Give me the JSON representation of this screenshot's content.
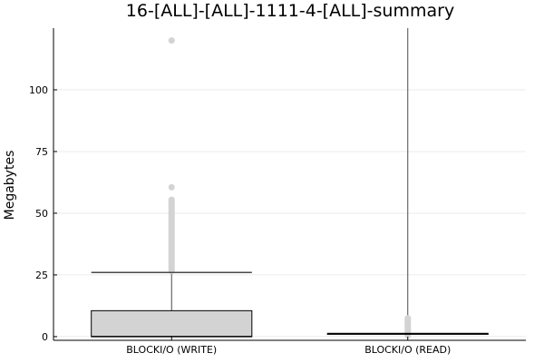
{
  "chart_data": {
    "type": "box",
    "title": "16-[ALL]-[ALL]-1111-4-[ALL]-summary",
    "xlabel": "",
    "ylabel": "Megabytes",
    "ylim": [
      -1.5,
      125
    ],
    "yticks": [
      0,
      25,
      50,
      75,
      100
    ],
    "grid": true,
    "legend": "none",
    "box_fill": "#d3d3d3",
    "outlier_color": "#d3d3d3",
    "categories": [
      "BLOCKI/O (WRITE)",
      "BLOCKI/O (READ)"
    ],
    "series": [
      {
        "category": "BLOCKI/O (WRITE)",
        "min": 0,
        "q1": 0,
        "median": 0,
        "q3": 10.5,
        "whisker_high": 26,
        "outliers_dense_range": [
          26,
          56
        ],
        "outliers": [
          60.5,
          120
        ]
      },
      {
        "category": "BLOCKI/O (READ)",
        "min": 0,
        "q1": 1,
        "median": 1.2,
        "q3": 1.3,
        "whisker_high": 125,
        "outliers_dense_range": [
          0,
          8
        ],
        "outliers": []
      }
    ]
  }
}
